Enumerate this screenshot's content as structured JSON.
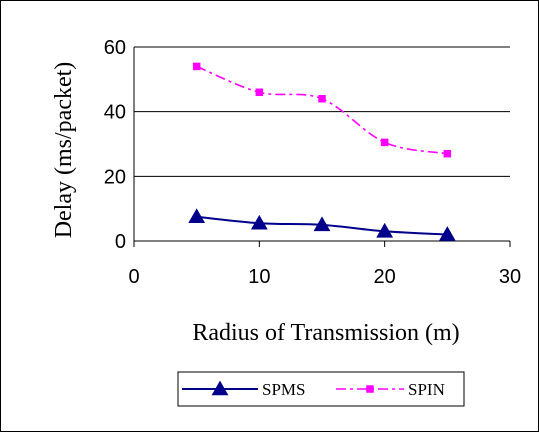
{
  "chart_data": {
    "type": "line",
    "title": "",
    "xlabel": "Radius of Transmission (m)",
    "ylabel": "Delay (ms/packet)",
    "xlim": [
      0,
      30
    ],
    "ylim": [
      0,
      60
    ],
    "xticks": [
      "0",
      "10",
      "20",
      "30"
    ],
    "yticks": [
      "0",
      "20",
      "40",
      "60"
    ],
    "grid": "horizontal",
    "legend": "bottom",
    "series": [
      {
        "name": "SPMS",
        "color": "#00008b",
        "marker": "triangle",
        "line": "solid",
        "x": [
          5,
          10,
          15,
          20,
          25
        ],
        "y": [
          7.5,
          5.5,
          5,
          3,
          2
        ]
      },
      {
        "name": "SPIN",
        "color": "#ff00ff",
        "marker": "square",
        "line": "dash-dot",
        "x": [
          5,
          10,
          15,
          20,
          25
        ],
        "y": [
          54,
          46,
          44,
          30.5,
          27
        ]
      }
    ]
  }
}
